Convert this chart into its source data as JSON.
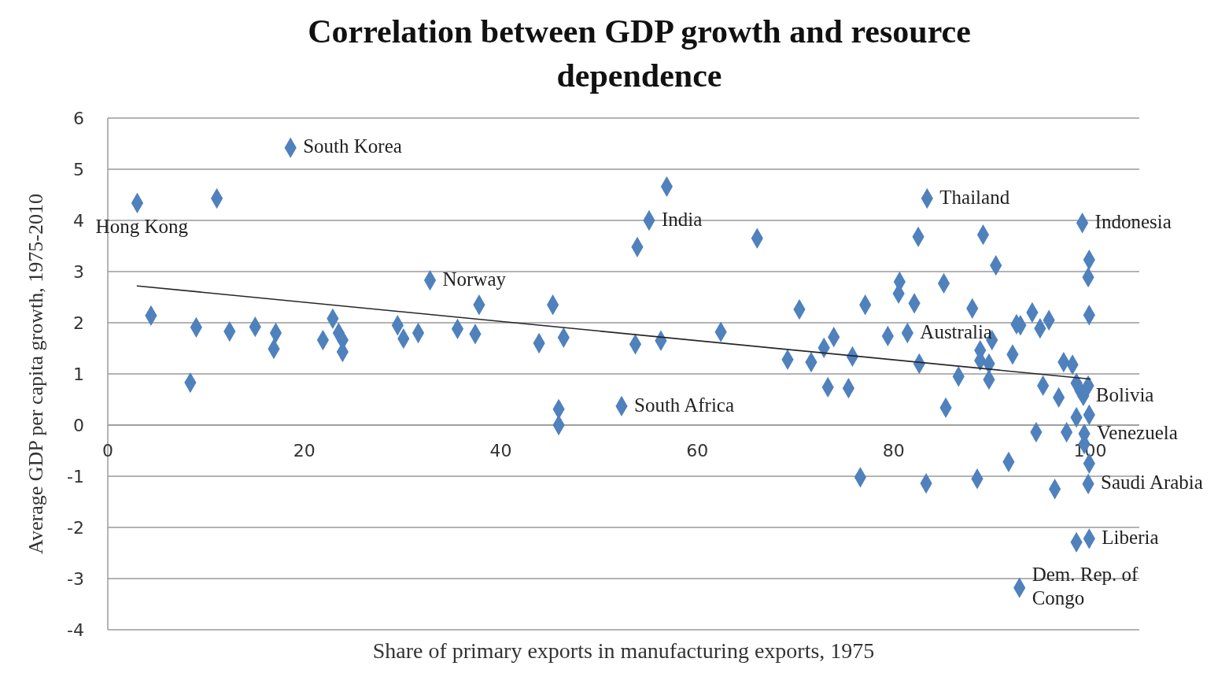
{
  "chart_data": {
    "type": "scatter",
    "title": "Correlation between GDP growth and resource dependence",
    "xlabel": "Share of primary exports in manufacturing exports, 1975",
    "ylabel": "Average GDP per capita growth, 1975-2010",
    "xlim": [
      0,
      105
    ],
    "xticks": [
      0,
      20,
      40,
      60,
      80,
      100
    ],
    "ylim": [
      -4,
      6
    ],
    "yticks": [
      -4,
      -3,
      -2,
      -1,
      0,
      1,
      2,
      3,
      4,
      5,
      6
    ],
    "grid": "y",
    "series": [
      {
        "marker": "diamond",
        "color": "#4f81bd",
        "x": [
          3.0,
          11.1,
          18.6,
          4.4,
          9.0,
          8.4,
          12.4,
          15.0,
          17.1,
          16.9,
          21.9,
          22.9,
          23.5,
          23.9,
          23.9,
          29.5,
          30.1,
          31.6,
          32.8,
          35.6,
          37.4,
          37.8,
          43.9,
          45.3,
          46.4,
          45.9,
          45.9,
          52.3,
          53.7,
          53.9,
          55.1,
          56.9,
          56.3,
          62.4,
          66.1,
          69.2,
          70.4,
          71.6,
          77.1,
          80.6,
          80.5,
          82.1,
          85.1,
          88.0,
          83.4,
          82.5,
          89.1,
          90.4,
          79.4,
          81.4,
          73.9,
          72.9,
          75.8,
          82.6,
          92.1,
          88.8,
          89.7,
          90.0,
          73.3,
          75.4,
          86.6,
          89.7,
          85.3,
          88.8,
          92.5,
          99.2,
          99.9,
          99.8,
          99.9,
          94.1,
          92.9,
          94.9,
          95.8,
          97.3,
          98.2,
          95.2,
          96.8,
          98.6,
          99.8,
          98.6,
          99.9,
          99.0,
          99.3,
          94.5,
          97.6,
          99.4,
          99.4,
          99.9,
          91.7,
          76.6,
          83.3,
          88.5,
          96.4,
          99.8,
          98.6,
          99.9,
          92.8
        ],
        "values": [
          4.34,
          4.43,
          5.42,
          2.14,
          1.91,
          0.83,
          1.83,
          1.92,
          1.8,
          1.49,
          1.66,
          2.08,
          1.8,
          1.66,
          1.43,
          1.95,
          1.69,
          1.8,
          2.83,
          1.88,
          1.78,
          2.35,
          1.6,
          2.35,
          1.71,
          0.31,
          0.0,
          0.37,
          1.58,
          3.48,
          4.0,
          4.66,
          1.65,
          1.82,
          3.65,
          1.28,
          2.26,
          1.23,
          2.35,
          2.8,
          2.57,
          2.38,
          2.77,
          2.28,
          4.43,
          3.68,
          3.72,
          3.12,
          1.74,
          1.8,
          1.72,
          1.51,
          1.34,
          1.2,
          1.38,
          1.46,
          1.2,
          1.66,
          0.74,
          0.72,
          0.95,
          0.89,
          0.34,
          1.26,
          1.97,
          3.95,
          3.23,
          2.89,
          2.15,
          2.2,
          1.95,
          1.89,
          2.05,
          1.23,
          1.18,
          0.77,
          0.54,
          0.82,
          0.77,
          0.15,
          0.2,
          0.67,
          0.57,
          -0.14,
          -0.14,
          -0.17,
          -0.37,
          -0.75,
          -0.72,
          -1.02,
          -1.14,
          -1.05,
          -1.25,
          -1.15,
          -2.29,
          -2.22,
          -3.18
        ]
      },
      {
        "type": "line",
        "marker": "none",
        "color": "#262626",
        "x": [
          3.0,
          100
        ],
        "values": [
          2.72,
          0.9
        ]
      }
    ],
    "annotations": [
      {
        "text": "South Korea",
        "x": 18.6,
        "y": 5.42
      },
      {
        "text": "Hong Kong",
        "x": 3.0,
        "y": 4.34
      },
      {
        "text": "Norway",
        "x": 32.8,
        "y": 2.83
      },
      {
        "text": "India",
        "x": 55.1,
        "y": 4.0
      },
      {
        "text": "South Africa",
        "x": 52.3,
        "y": 0.37
      },
      {
        "text": "Thailand",
        "x": 83.4,
        "y": 4.43
      },
      {
        "text": "Australia",
        "x": 81.4,
        "y": 1.8
      },
      {
        "text": "Indonesia",
        "x": 99.2,
        "y": 3.95
      },
      {
        "text": "Bolivia",
        "x": 99.3,
        "y": 0.57
      },
      {
        "text": "Venezuela",
        "x": 99.4,
        "y": -0.17
      },
      {
        "text": "Saudi Arabia",
        "x": 99.8,
        "y": -1.15
      },
      {
        "text": "Liberia",
        "x": 99.9,
        "y": -2.22
      },
      {
        "text": "Dem. Rep. of\nCongo",
        "x": 92.8,
        "y": -3.18
      }
    ]
  }
}
